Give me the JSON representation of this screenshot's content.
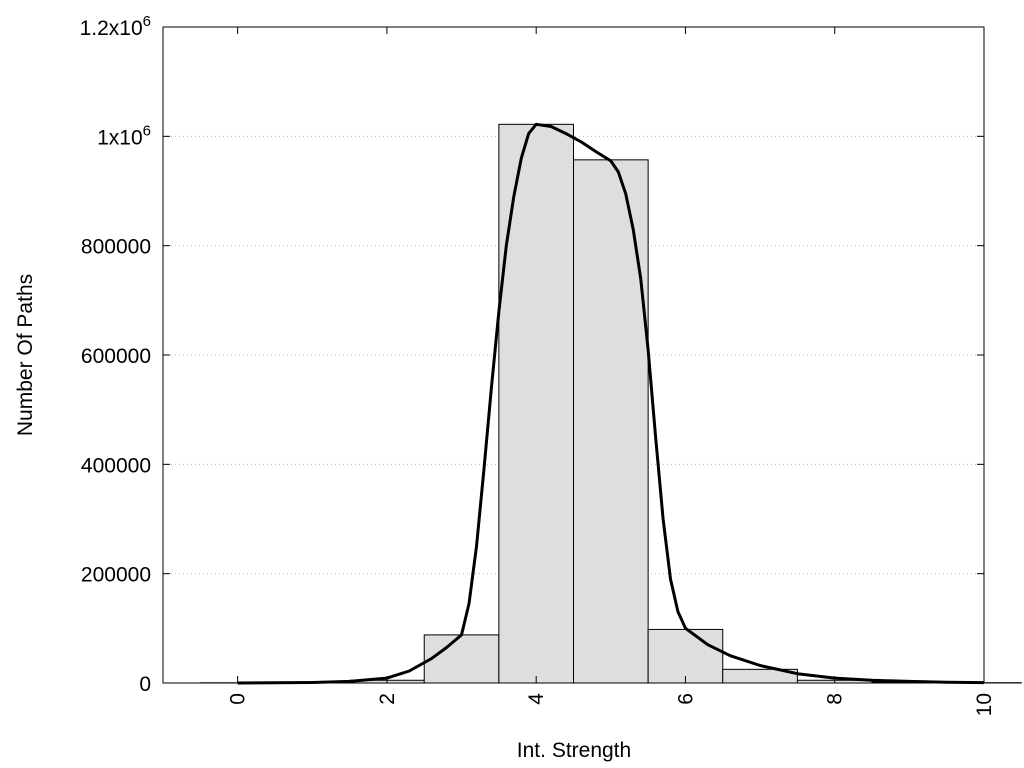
{
  "chart_data": {
    "type": "bar",
    "xlabel": "Int. Strength",
    "ylabel": "Number Of Paths",
    "xlim": [
      -1,
      10
    ],
    "ylim": [
      0,
      1200000
    ],
    "x_ticks": [
      "0",
      "2",
      "4",
      "6",
      "8",
      "10"
    ],
    "y_ticks": [
      {
        "value": 0,
        "label": "0"
      },
      {
        "value": 200000,
        "label": "200000"
      },
      {
        "value": 400000,
        "label": "400000"
      },
      {
        "value": 600000,
        "label": "600000"
      },
      {
        "value": 800000,
        "label": "800000"
      },
      {
        "value": 1000000,
        "base": "1x10",
        "exp": "6"
      },
      {
        "value": 1200000,
        "base": "1.2x10",
        "exp": "6"
      }
    ],
    "grid": "horizontal dotted",
    "bar_color": "#dedede",
    "bars": [
      {
        "x": 0,
        "value": 400
      },
      {
        "x": 1,
        "value": 700
      },
      {
        "x": 2,
        "value": 5000
      },
      {
        "x": 3,
        "value": 88000
      },
      {
        "x": 4,
        "value": 1022000
      },
      {
        "x": 5,
        "value": 957000
      },
      {
        "x": 6,
        "value": 98000
      },
      {
        "x": 7,
        "value": 25000
      },
      {
        "x": 8,
        "value": 5000
      },
      {
        "x": 9,
        "value": 1500
      },
      {
        "x": 10,
        "value": 500
      }
    ],
    "fit_curve": {
      "x": [
        0,
        0.5,
        1,
        1.5,
        2,
        2.3,
        2.6,
        2.8,
        3,
        3.1,
        3.2,
        3.3,
        3.4,
        3.5,
        3.6,
        3.7,
        3.8,
        3.9,
        4,
        4.2,
        4.4,
        4.6,
        4.8,
        5,
        5.1,
        5.2,
        5.3,
        5.4,
        5.5,
        5.6,
        5.7,
        5.8,
        5.9,
        6,
        6.3,
        6.6,
        7,
        7.5,
        8,
        8.5,
        9,
        9.5,
        10
      ],
      "y": [
        0,
        300,
        1000,
        3000,
        9000,
        22000,
        45000,
        65000,
        88000,
        145000,
        250000,
        390000,
        540000,
        680000,
        800000,
        890000,
        960000,
        1005000,
        1022000,
        1018000,
        1005000,
        990000,
        972000,
        955000,
        935000,
        895000,
        830000,
        740000,
        610000,
        450000,
        300000,
        190000,
        130000,
        100000,
        70000,
        50000,
        32000,
        17000,
        9000,
        5000,
        3000,
        1500,
        800
      ]
    }
  }
}
